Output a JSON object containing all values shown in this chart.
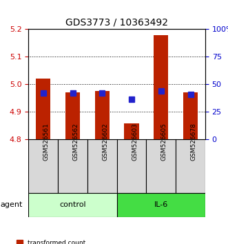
{
  "title": "GDS3773 / 10363492",
  "samples": [
    "GSM526561",
    "GSM526562",
    "GSM526602",
    "GSM526603",
    "GSM526605",
    "GSM526678"
  ],
  "groups": [
    "control",
    "control",
    "control",
    "IL-6",
    "IL-6",
    "IL-6"
  ],
  "red_values": [
    5.02,
    4.97,
    4.975,
    4.858,
    5.178,
    4.97
  ],
  "blue_values": [
    4.968,
    4.967,
    4.968,
    4.944,
    4.975,
    4.963
  ],
  "ymin": 4.8,
  "ymax": 5.2,
  "yticks": [
    4.8,
    4.9,
    5.0,
    5.1,
    5.2
  ],
  "right_yticks": [
    0,
    25,
    50,
    75,
    100
  ],
  "right_ylabels": [
    "0",
    "25",
    "50",
    "75",
    "100%"
  ],
  "red_color": "#bb2200",
  "blue_color": "#2222cc",
  "control_color": "#ccffcc",
  "il6_color": "#44dd44",
  "sample_bg_color": "#d8d8d8",
  "bar_width": 0.5,
  "blue_size": 6,
  "grid_color": "#000000",
  "left_tick_color": "#cc0000",
  "right_tick_color": "#0000cc"
}
